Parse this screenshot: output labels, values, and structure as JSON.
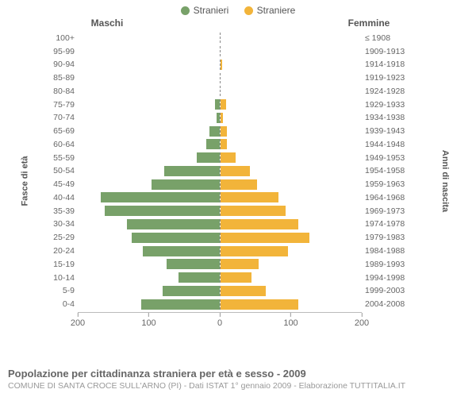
{
  "legend": {
    "male": {
      "label": "Stranieri",
      "color": "#78a169"
    },
    "female": {
      "label": "Straniere",
      "color": "#f2b复43a"
    }
  },
  "colors": {
    "male_bar": "#78a169",
    "female_bar": "#f2b43a",
    "background": "#ffffff",
    "axis": "#bbbbbb",
    "divider": "#888888",
    "text": "#555555"
  },
  "titles": {
    "left_col": "Maschi",
    "right_col": "Femmine",
    "y_left": "Fasce di età",
    "y_right": "Anni di nascita"
  },
  "footer": {
    "title": "Popolazione per cittadinanza straniera per età e sesso - 2009",
    "source": "COMUNE DI SANTA CROCE SULL'ARNO (PI) - Dati ISTAT 1° gennaio 2009 - Elaborazione TUTTITALIA.IT"
  },
  "x_axis": {
    "max": 200,
    "ticks": [
      200,
      100,
      0,
      100,
      200
    ],
    "tick_fontsize": 11
  },
  "typography": {
    "label_fontsize": 10.5,
    "col_title_fontsize": 12,
    "axis_label_fontsize": 11,
    "footer_title_fontsize": 13,
    "footer_source_fontsize": 10.5
  },
  "rows": [
    {
      "age": "100+",
      "birth": "≤ 1908",
      "m": 0,
      "f": 0
    },
    {
      "age": "95-99",
      "birth": "1909-1913",
      "m": 0,
      "f": 0
    },
    {
      "age": "90-94",
      "birth": "1914-1918",
      "m": 0,
      "f": 3
    },
    {
      "age": "85-89",
      "birth": "1919-1923",
      "m": 0,
      "f": 0
    },
    {
      "age": "80-84",
      "birth": "1924-1928",
      "m": 0,
      "f": 0
    },
    {
      "age": "75-79",
      "birth": "1929-1933",
      "m": 6,
      "f": 8
    },
    {
      "age": "70-74",
      "birth": "1934-1938",
      "m": 4,
      "f": 4
    },
    {
      "age": "65-69",
      "birth": "1939-1943",
      "m": 14,
      "f": 10
    },
    {
      "age": "60-64",
      "birth": "1944-1948",
      "m": 18,
      "f": 10
    },
    {
      "age": "55-59",
      "birth": "1949-1953",
      "m": 32,
      "f": 22
    },
    {
      "age": "50-54",
      "birth": "1954-1958",
      "m": 78,
      "f": 42
    },
    {
      "age": "45-49",
      "birth": "1959-1963",
      "m": 96,
      "f": 52
    },
    {
      "age": "40-44",
      "birth": "1964-1968",
      "m": 168,
      "f": 82
    },
    {
      "age": "35-39",
      "birth": "1969-1973",
      "m": 162,
      "f": 92
    },
    {
      "age": "30-34",
      "birth": "1974-1978",
      "m": 130,
      "f": 110
    },
    {
      "age": "25-29",
      "birth": "1979-1983",
      "m": 124,
      "f": 126
    },
    {
      "age": "20-24",
      "birth": "1984-1988",
      "m": 108,
      "f": 96
    },
    {
      "age": "15-19",
      "birth": "1989-1993",
      "m": 74,
      "f": 54
    },
    {
      "age": "10-14",
      "birth": "1994-1998",
      "m": 58,
      "f": 44
    },
    {
      "age": "5-9",
      "birth": "1999-2003",
      "m": 80,
      "f": 64
    },
    {
      "age": "0-4",
      "birth": "2004-2008",
      "m": 110,
      "f": 110
    }
  ]
}
